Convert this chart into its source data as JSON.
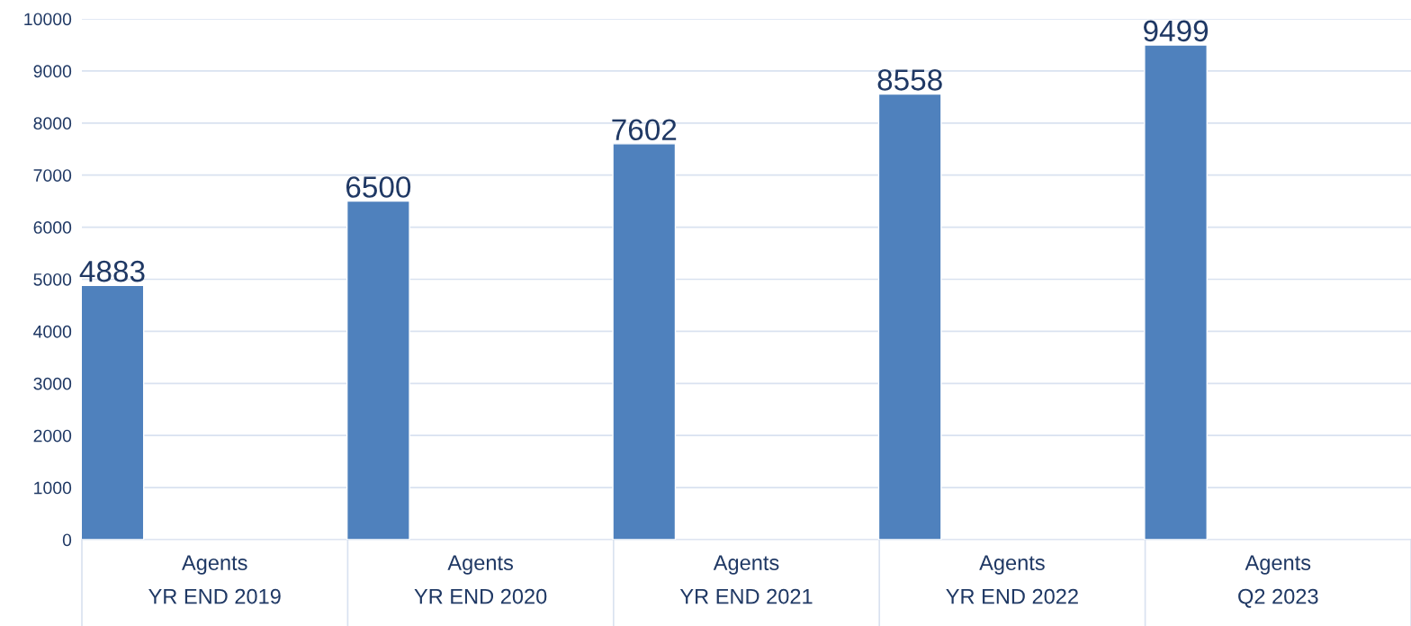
{
  "chart_data": {
    "type": "bar",
    "categories": [
      "Agents\nYR END 2019",
      "Agents\nYR END 2020",
      "Agents\nYR END 2021",
      "Agents\nYR END 2022",
      "Agents\nQ2 2023"
    ],
    "values": [
      4883,
      6500,
      7602,
      8558,
      9499
    ],
    "color": "#4f81bd",
    "data_labels": true,
    "ylim": [
      0,
      10000
    ],
    "yticks": [
      0,
      1000,
      2000,
      3000,
      4000,
      5000,
      6000,
      7000,
      8000,
      9000,
      10000
    ],
    "grid": "y"
  }
}
